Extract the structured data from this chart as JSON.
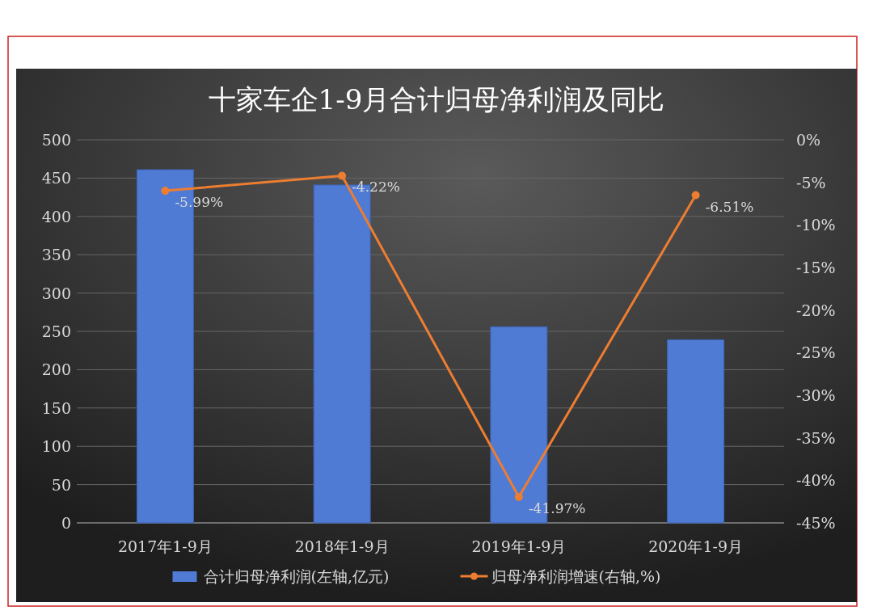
{
  "chart_data": {
    "type": "bar",
    "title": "十家车企1-9月合计归母净利润及同比",
    "categories": [
      "2017年1-9月",
      "2018年1-9月",
      "2019年1-9月",
      "2020年1-9月"
    ],
    "series": [
      {
        "name": "合计归母净利润(左轴,亿元)",
        "color": "#4f7bd4",
        "values": [
          461,
          441,
          256,
          239
        ]
      },
      {
        "name": "归母净利润增速(右轴,%)",
        "type": "line",
        "axis": "y2",
        "color": "#ed7d31",
        "values": [
          -5.99,
          -4.22,
          -41.97,
          -6.51
        ],
        "value_labels": [
          "-5.99%",
          "-4.22%",
          "-41.97%",
          "-6.51%"
        ]
      }
    ],
    "ylim": [
      0,
      500
    ],
    "yticks": [
      0,
      50,
      100,
      150,
      200,
      250,
      300,
      350,
      400,
      450,
      500
    ],
    "y2lim": [
      -45,
      0
    ],
    "y2ticks": [
      {
        "value": -45,
        "label": "-45%"
      },
      {
        "value": -40,
        "label": "-40%"
      },
      {
        "value": -35,
        "label": "-35%"
      },
      {
        "value": -30,
        "label": "-30%"
      },
      {
        "value": -25,
        "label": "-25%"
      },
      {
        "value": -20,
        "label": "-20%"
      },
      {
        "value": -15,
        "label": "-15%"
      },
      {
        "value": -10,
        "label": "-10%"
      },
      {
        "value": -5,
        "label": "-5%"
      },
      {
        "value": 0,
        "label": "0%"
      }
    ],
    "grid": "y",
    "legend": "bottom",
    "marker": "circle",
    "line_style": "solid"
  }
}
